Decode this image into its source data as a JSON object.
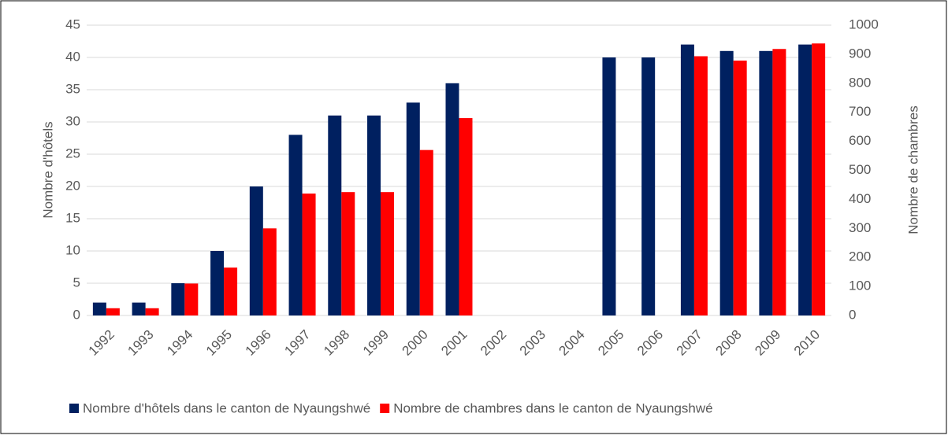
{
  "chart_data": {
    "type": "bar",
    "categories": [
      "1992",
      "1993",
      "1994",
      "1995",
      "1996",
      "1997",
      "1998",
      "1999",
      "2000",
      "2001",
      "2002",
      "2003",
      "2004",
      "2005",
      "2006",
      "2007",
      "2008",
      "2009",
      "2010"
    ],
    "series": [
      {
        "name": "Nombre d'hôtels dans le canton de Nyaungshwé",
        "color": "#002060",
        "values": [
          2,
          2,
          5,
          10,
          20,
          28,
          31,
          31,
          33,
          36,
          null,
          null,
          null,
          40,
          40,
          42,
          41,
          41,
          42
        ]
      },
      {
        "name": "Nombre de chambres dans le canton de Nyaungshwé",
        "color": "#ff0000",
        "axis": "y2",
        "values": [
          25,
          25,
          110,
          165,
          300,
          420,
          425,
          425,
          570,
          680,
          null,
          null,
          null,
          null,
          null,
          893,
          878,
          918,
          937
        ]
      }
    ],
    "ylabel": "Nombre d'hôtels",
    "y2label": "Nombre de chambres",
    "ylim": [
      0,
      45
    ],
    "yticks": [
      0,
      5,
      10,
      15,
      20,
      25,
      30,
      35,
      40,
      45
    ],
    "y2lim": [
      0,
      1000
    ],
    "y2ticks": [
      0,
      100,
      200,
      300,
      400,
      500,
      600,
      700,
      800,
      900,
      1000
    ],
    "grid": true,
    "legend": "bottom"
  }
}
